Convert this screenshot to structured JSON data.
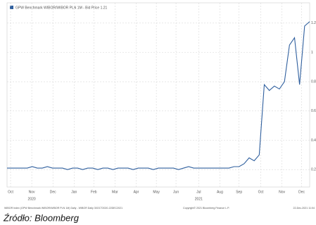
{
  "chart_data": {
    "type": "line",
    "legend_label": "GPW Benchmark WIBOR/WIBOR PLN 1M - Bid Price 1.21",
    "series": [
      {
        "name": "GPW Benchmark WIBOR/WIBOR PLN 1M",
        "color": "#2f5f9e",
        "values": [
          0.21,
          0.21,
          0.21,
          0.21,
          0.21,
          0.22,
          0.21,
          0.21,
          0.22,
          0.21,
          0.21,
          0.21,
          0.2,
          0.21,
          0.21,
          0.2,
          0.21,
          0.21,
          0.2,
          0.21,
          0.21,
          0.2,
          0.21,
          0.21,
          0.21,
          0.2,
          0.21,
          0.21,
          0.21,
          0.2,
          0.21,
          0.21,
          0.21,
          0.21,
          0.2,
          0.21,
          0.22,
          0.21,
          0.21,
          0.21,
          0.21,
          0.21,
          0.21,
          0.21,
          0.21,
          0.22,
          0.22,
          0.24,
          0.28,
          0.26,
          0.3,
          0.78,
          0.74,
          0.77,
          0.75,
          0.8,
          1.05,
          1.1,
          0.78,
          1.18,
          1.21
        ]
      }
    ],
    "xlim": [
      0,
      60
    ],
    "xticks": [
      {
        "value": 0.7,
        "label": "Oct"
      },
      {
        "value": 4.9,
        "label": "Nov"
      },
      {
        "value": 9.1,
        "label": "Dec"
      },
      {
        "value": 13.3,
        "label": "Jan"
      },
      {
        "value": 17.2,
        "label": "Feb"
      },
      {
        "value": 21.4,
        "label": "Mar"
      },
      {
        "value": 25.6,
        "label": "Apr"
      },
      {
        "value": 29.6,
        "label": "May"
      },
      {
        "value": 33.5,
        "label": "Jun"
      },
      {
        "value": 38,
        "label": "Jul"
      },
      {
        "value": 42.2,
        "label": "Aug"
      },
      {
        "value": 46,
        "label": "Sep"
      },
      {
        "value": 50.3,
        "label": "Oct"
      },
      {
        "value": 54.5,
        "label": "Nov"
      },
      {
        "value": 58.4,
        "label": "Dec"
      }
    ],
    "years": [
      {
        "value": 4.9,
        "label": "2020"
      },
      {
        "value": 38,
        "label": "2021"
      }
    ],
    "ylim": [
      0.1,
      1.3
    ],
    "yticks": [
      0.2,
      0.4,
      0.6,
      0.8,
      1,
      1.2
    ],
    "grid": true,
    "footer_left": "WIBOR Index (GPW Benchmark WIBOR/WIBOR PLN 1M) Daily - WIBOR Daily 30OCT2020-22DEC2021",
    "footer_center": "Copyright© 2021 Bloomberg Finance L.P.",
    "footer_right": "22-Dec-2021 11:04",
    "source": "Źródło: Bloomberg"
  }
}
